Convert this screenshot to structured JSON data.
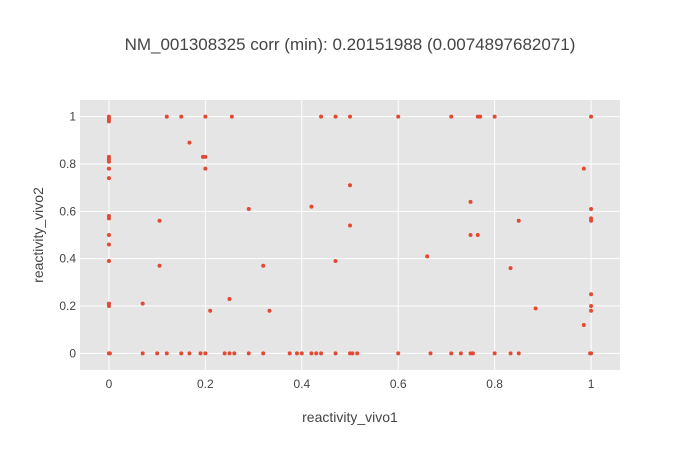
{
  "chart_data": {
    "type": "scatter",
    "title": "NM_001308325 corr (min): 0.20151988 (0.0074897682071)",
    "xlabel": "reactivity_vivo1",
    "ylabel": "reactivity_vivo2",
    "xlim": [
      -0.06,
      1.06
    ],
    "ylim": [
      -0.07,
      1.07
    ],
    "grid": true,
    "marker_color": "#e24a33",
    "plot_background": "#e5e5e5",
    "grid_color": "#ffffff",
    "text_color": "#444444",
    "x_ticks": [
      {
        "value": 0,
        "label": "0"
      },
      {
        "value": 0.2,
        "label": "0.2"
      },
      {
        "value": 0.4,
        "label": "0.4"
      },
      {
        "value": 0.6,
        "label": "0.6"
      },
      {
        "value": 0.8,
        "label": "0.8"
      },
      {
        "value": 1,
        "label": "1"
      }
    ],
    "y_ticks": [
      {
        "value": 0,
        "label": "0"
      },
      {
        "value": 0.2,
        "label": "0.2"
      },
      {
        "value": 0.4,
        "label": "0.4"
      },
      {
        "value": 0.6,
        "label": "0.6"
      },
      {
        "value": 0.8,
        "label": "0.8"
      },
      {
        "value": 1,
        "label": "1"
      }
    ],
    "points": [
      {
        "x": 0,
        "y": 1
      },
      {
        "x": 0,
        "y": 0.99
      },
      {
        "x": 0,
        "y": 0.98
      },
      {
        "x": 0,
        "y": 0.83
      },
      {
        "x": 0,
        "y": 0.82
      },
      {
        "x": 0,
        "y": 0.81
      },
      {
        "x": 0,
        "y": 0.78
      },
      {
        "x": 0,
        "y": 0.74
      },
      {
        "x": 0,
        "y": 0.58
      },
      {
        "x": 0,
        "y": 0.57
      },
      {
        "x": 0,
        "y": 0.5
      },
      {
        "x": 0,
        "y": 0.46
      },
      {
        "x": 0,
        "y": 0.39
      },
      {
        "x": 0,
        "y": 0.21
      },
      {
        "x": 0,
        "y": 0.2
      },
      {
        "x": 0,
        "y": 0
      },
      {
        "x": 0.002,
        "y": 0
      },
      {
        "x": 0.07,
        "y": 0.21
      },
      {
        "x": 0.07,
        "y": 0
      },
      {
        "x": 0.1,
        "y": 0
      },
      {
        "x": 0.105,
        "y": 0.56
      },
      {
        "x": 0.105,
        "y": 0.37
      },
      {
        "x": 0.12,
        "y": 1
      },
      {
        "x": 0.12,
        "y": 0
      },
      {
        "x": 0.15,
        "y": 1
      },
      {
        "x": 0.15,
        "y": 0
      },
      {
        "x": 0.167,
        "y": 0.89
      },
      {
        "x": 0.167,
        "y": 0
      },
      {
        "x": 0.19,
        "y": 0
      },
      {
        "x": 0.195,
        "y": 0.83
      },
      {
        "x": 0.2,
        "y": 1
      },
      {
        "x": 0.2,
        "y": 0.83
      },
      {
        "x": 0.2,
        "y": 0.78
      },
      {
        "x": 0.2,
        "y": 0
      },
      {
        "x": 0.21,
        "y": 0.18
      },
      {
        "x": 0.24,
        "y": 0
      },
      {
        "x": 0.25,
        "y": 0.23
      },
      {
        "x": 0.25,
        "y": 0
      },
      {
        "x": 0.255,
        "y": 1
      },
      {
        "x": 0.26,
        "y": 0
      },
      {
        "x": 0.29,
        "y": 0.61
      },
      {
        "x": 0.29,
        "y": 0
      },
      {
        "x": 0.32,
        "y": 0.37
      },
      {
        "x": 0.32,
        "y": 0
      },
      {
        "x": 0.333,
        "y": 0.18
      },
      {
        "x": 0.375,
        "y": 0
      },
      {
        "x": 0.39,
        "y": 0
      },
      {
        "x": 0.4,
        "y": 0
      },
      {
        "x": 0.42,
        "y": 0.62
      },
      {
        "x": 0.42,
        "y": 0
      },
      {
        "x": 0.43,
        "y": 0
      },
      {
        "x": 0.44,
        "y": 1
      },
      {
        "x": 0.44,
        "y": 0
      },
      {
        "x": 0.47,
        "y": 1
      },
      {
        "x": 0.47,
        "y": 0.39
      },
      {
        "x": 0.47,
        "y": 0
      },
      {
        "x": 0.5,
        "y": 1
      },
      {
        "x": 0.5,
        "y": 0.71
      },
      {
        "x": 0.5,
        "y": 0.54
      },
      {
        "x": 0.5,
        "y": 0
      },
      {
        "x": 0.505,
        "y": 0
      },
      {
        "x": 0.515,
        "y": 0
      },
      {
        "x": 0.6,
        "y": 1
      },
      {
        "x": 0.6,
        "y": 0
      },
      {
        "x": 0.66,
        "y": 0.41
      },
      {
        "x": 0.667,
        "y": 0
      },
      {
        "x": 0.71,
        "y": 1
      },
      {
        "x": 0.71,
        "y": 0
      },
      {
        "x": 0.73,
        "y": 0
      },
      {
        "x": 0.75,
        "y": 0.64
      },
      {
        "x": 0.75,
        "y": 0.5
      },
      {
        "x": 0.75,
        "y": 0
      },
      {
        "x": 0.755,
        "y": 0
      },
      {
        "x": 0.765,
        "y": 1
      },
      {
        "x": 0.765,
        "y": 0.5
      },
      {
        "x": 0.77,
        "y": 1
      },
      {
        "x": 0.8,
        "y": 1
      },
      {
        "x": 0.8,
        "y": 0
      },
      {
        "x": 0.833,
        "y": 0.36
      },
      {
        "x": 0.833,
        "y": 0
      },
      {
        "x": 0.85,
        "y": 0.56
      },
      {
        "x": 0.85,
        "y": 0
      },
      {
        "x": 0.885,
        "y": 0.19
      },
      {
        "x": 0.985,
        "y": 0.78
      },
      {
        "x": 0.985,
        "y": 0.12
      },
      {
        "x": 1,
        "y": 1
      },
      {
        "x": 1,
        "y": 0.61
      },
      {
        "x": 1,
        "y": 0.57
      },
      {
        "x": 1,
        "y": 0.56
      },
      {
        "x": 1,
        "y": 0.25
      },
      {
        "x": 1,
        "y": 0.2
      },
      {
        "x": 1,
        "y": 0.18
      },
      {
        "x": 1,
        "y": 0
      },
      {
        "x": 0.998,
        "y": 0
      }
    ]
  }
}
